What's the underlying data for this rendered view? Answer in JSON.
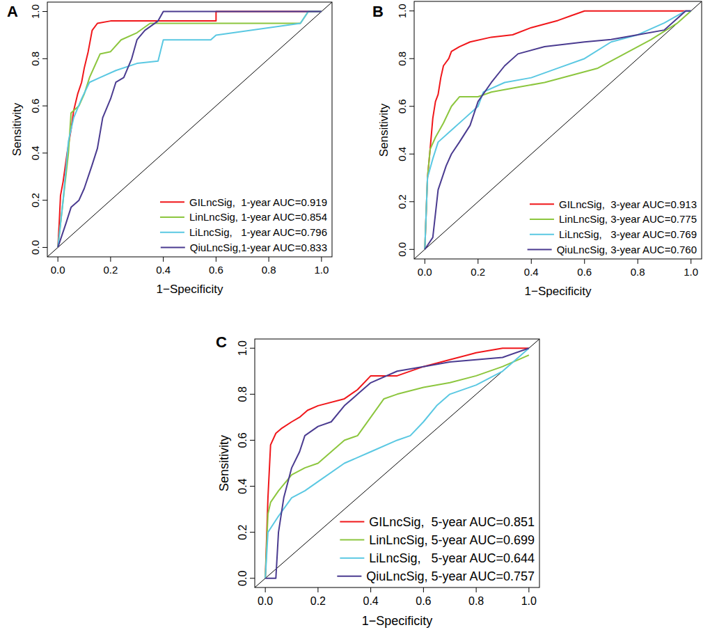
{
  "chart_data": [
    {
      "type": "line",
      "title": "A",
      "xlabel": "1−Specificity",
      "ylabel": "Sensitivity",
      "xlim": [
        -0.04,
        1.04
      ],
      "ylim": [
        -0.04,
        1.04
      ],
      "xticks": [
        {
          "value": 0,
          "label": "0.0"
        },
        0.2,
        0.4,
        0.6,
        0.8,
        {
          "value": 1,
          "label": "1.0"
        }
      ],
      "yticks": [
        {
          "value": 0,
          "label": "0.0"
        },
        0.2,
        0.4,
        0.6,
        0.8,
        {
          "value": 1,
          "label": "1.0"
        }
      ],
      "legend": "bottom-right",
      "series": [
        {
          "name": "GILncSig,  1-year AUC=0.919",
          "color": "#f0161a",
          "x": [
            0,
            0.005,
            0.01,
            0.02,
            0.035,
            0.05,
            0.06,
            0.075,
            0.09,
            0.1,
            0.115,
            0.13,
            0.15,
            0.2,
            0.6,
            0.6,
            1
          ],
          "values": [
            0,
            0.1,
            0.22,
            0.28,
            0.4,
            0.5,
            0.58,
            0.65,
            0.7,
            0.76,
            0.83,
            0.92,
            0.95,
            0.96,
            0.96,
            1,
            1
          ]
        },
        {
          "name": "LinLncSig, 1-year AUC=0.854",
          "color": "#8cc63e",
          "x": [
            0,
            0.02,
            0.04,
            0.05,
            0.08,
            0.1,
            0.12,
            0.14,
            0.16,
            0.2,
            0.24,
            0.3,
            0.35,
            0.92,
            0.95,
            1
          ],
          "values": [
            0,
            0.2,
            0.4,
            0.57,
            0.6,
            0.65,
            0.72,
            0.77,
            0.82,
            0.83,
            0.88,
            0.91,
            0.95,
            0.95,
            1,
            1
          ]
        },
        {
          "name": "LiLncSig,   1-year AUC=0.796",
          "color": "#5ac8e2",
          "x": [
            0,
            0.02,
            0.04,
            0.06,
            0.09,
            0.12,
            0.16,
            0.22,
            0.3,
            0.38,
            0.4,
            0.58,
            0.6,
            0.92,
            0.95,
            1
          ],
          "values": [
            0,
            0.2,
            0.45,
            0.55,
            0.63,
            0.7,
            0.72,
            0.75,
            0.78,
            0.79,
            0.88,
            0.88,
            0.9,
            0.95,
            1,
            1
          ]
        },
        {
          "name": "QiuLncSig,1-year AUC=0.833",
          "color": "#4a3b90",
          "x": [
            0,
            0.03,
            0.05,
            0.08,
            0.1,
            0.13,
            0.15,
            0.17,
            0.2,
            0.22,
            0.25,
            0.28,
            0.3,
            0.33,
            0.38,
            0.4,
            1
          ],
          "values": [
            0,
            0.1,
            0.17,
            0.2,
            0.25,
            0.35,
            0.42,
            0.55,
            0.63,
            0.7,
            0.72,
            0.8,
            0.88,
            0.92,
            0.96,
            1,
            1
          ]
        }
      ]
    },
    {
      "type": "line",
      "title": "B",
      "xlabel": "1−Specificity",
      "ylabel": "Sensitivity",
      "xlim": [
        -0.04,
        1.04
      ],
      "ylim": [
        -0.04,
        1.04
      ],
      "xticks": [
        {
          "value": 0,
          "label": "0.0"
        },
        0.2,
        0.4,
        0.6,
        0.8,
        {
          "value": 1,
          "label": "1.0"
        }
      ],
      "yticks": [
        {
          "value": 0,
          "label": "0.0"
        },
        0.2,
        0.4,
        0.6,
        0.8,
        {
          "value": 1,
          "label": "1.0"
        }
      ],
      "legend": "bottom-right",
      "series": [
        {
          "name": "GILncSig,  3-year AUC=0.913",
          "color": "#f0161a",
          "x": [
            0,
            0.01,
            0.02,
            0.03,
            0.04,
            0.05,
            0.06,
            0.07,
            0.09,
            0.1,
            0.13,
            0.17,
            0.25,
            0.33,
            0.4,
            0.5,
            0.55,
            0.6,
            1
          ],
          "values": [
            0,
            0.3,
            0.42,
            0.55,
            0.62,
            0.65,
            0.72,
            0.77,
            0.8,
            0.83,
            0.85,
            0.87,
            0.89,
            0.9,
            0.93,
            0.96,
            0.98,
            1,
            1
          ]
        },
        {
          "name": "LinLncSig, 3-year AUC=0.775",
          "color": "#8cc63e",
          "x": [
            0,
            0.01,
            0.02,
            0.04,
            0.07,
            0.1,
            0.13,
            0.2,
            0.25,
            0.35,
            0.45,
            0.55,
            0.65,
            0.75,
            0.85,
            0.95,
            1
          ],
          "values": [
            0,
            0.3,
            0.42,
            0.47,
            0.53,
            0.6,
            0.64,
            0.64,
            0.66,
            0.68,
            0.7,
            0.73,
            0.76,
            0.82,
            0.88,
            0.95,
            1
          ]
        },
        {
          "name": "LiLncSig,   3-year AUC=0.769",
          "color": "#5ac8e2",
          "x": [
            0,
            0.01,
            0.03,
            0.05,
            0.1,
            0.15,
            0.2,
            0.22,
            0.3,
            0.4,
            0.5,
            0.6,
            0.7,
            0.8,
            0.9,
            0.98,
            1
          ],
          "values": [
            0,
            0.3,
            0.38,
            0.45,
            0.5,
            0.55,
            0.6,
            0.66,
            0.7,
            0.72,
            0.76,
            0.8,
            0.87,
            0.9,
            0.95,
            1,
            1
          ]
        },
        {
          "name": "QiuLncSig, 3-year AUC=0.760",
          "color": "#4a3b90",
          "x": [
            0,
            0.03,
            0.05,
            0.08,
            0.1,
            0.13,
            0.17,
            0.2,
            0.25,
            0.3,
            0.35,
            0.45,
            0.6,
            0.7,
            0.8,
            0.9,
            0.95,
            0.98,
            1
          ],
          "values": [
            0,
            0.05,
            0.25,
            0.35,
            0.4,
            0.45,
            0.52,
            0.62,
            0.7,
            0.77,
            0.82,
            0.85,
            0.87,
            0.88,
            0.9,
            0.92,
            0.97,
            1,
            1
          ]
        }
      ]
    },
    {
      "type": "line",
      "title": "C",
      "xlabel": "1−Specificity",
      "ylabel": "Sensitivity",
      "xlim": [
        -0.04,
        1.04
      ],
      "ylim": [
        -0.04,
        1.04
      ],
      "xticks": [
        {
          "value": 0,
          "label": "0.0"
        },
        0.2,
        0.4,
        0.6,
        0.8,
        {
          "value": 1,
          "label": "1.0"
        }
      ],
      "yticks": [
        {
          "value": 0,
          "label": "0.0"
        },
        0.2,
        0.4,
        0.6,
        0.8,
        {
          "value": 1,
          "label": "1.0"
        }
      ],
      "legend": "bottom-right",
      "series": [
        {
          "name": "GILncSig,  5-year AUC=0.851",
          "color": "#f0161a",
          "x": [
            0,
            0.01,
            0.02,
            0.04,
            0.06,
            0.1,
            0.13,
            0.16,
            0.2,
            0.3,
            0.35,
            0.4,
            0.5,
            0.6,
            0.7,
            0.8,
            0.9,
            1
          ],
          "values": [
            0,
            0.35,
            0.58,
            0.63,
            0.65,
            0.68,
            0.7,
            0.73,
            0.75,
            0.78,
            0.82,
            0.88,
            0.88,
            0.92,
            0.95,
            0.98,
            1,
            1
          ]
        },
        {
          "name": "LinLncSig, 5-year AUC=0.699",
          "color": "#8cc63e",
          "x": [
            0,
            0.01,
            0.02,
            0.05,
            0.1,
            0.15,
            0.2,
            0.25,
            0.3,
            0.35,
            0.4,
            0.45,
            0.5,
            0.6,
            0.7,
            0.8,
            0.9,
            1
          ],
          "values": [
            0,
            0.28,
            0.33,
            0.38,
            0.45,
            0.48,
            0.5,
            0.55,
            0.6,
            0.62,
            0.7,
            0.78,
            0.8,
            0.83,
            0.85,
            0.88,
            0.92,
            0.97
          ]
        },
        {
          "name": "LiLncSig,   5-year AUC=0.644",
          "color": "#5ac8e2",
          "x": [
            0,
            0.01,
            0.05,
            0.1,
            0.15,
            0.2,
            0.3,
            0.4,
            0.5,
            0.55,
            0.6,
            0.65,
            0.7,
            0.8,
            0.9,
            0.97,
            1
          ],
          "values": [
            0,
            0.2,
            0.27,
            0.35,
            0.38,
            0.42,
            0.5,
            0.55,
            0.6,
            0.62,
            0.68,
            0.75,
            0.8,
            0.84,
            0.9,
            0.97,
            1
          ]
        },
        {
          "name": "QiuLncSig, 5-year AUC=0.757",
          "color": "#4a3b90",
          "x": [
            0,
            0.04,
            0.05,
            0.07,
            0.1,
            0.13,
            0.15,
            0.2,
            0.25,
            0.3,
            0.35,
            0.4,
            0.5,
            0.6,
            0.7,
            0.8,
            0.9,
            1
          ],
          "values": [
            0,
            0,
            0.2,
            0.35,
            0.48,
            0.55,
            0.62,
            0.66,
            0.68,
            0.75,
            0.8,
            0.85,
            0.9,
            0.92,
            0.94,
            0.95,
            0.96,
            1
          ]
        }
      ]
    }
  ]
}
